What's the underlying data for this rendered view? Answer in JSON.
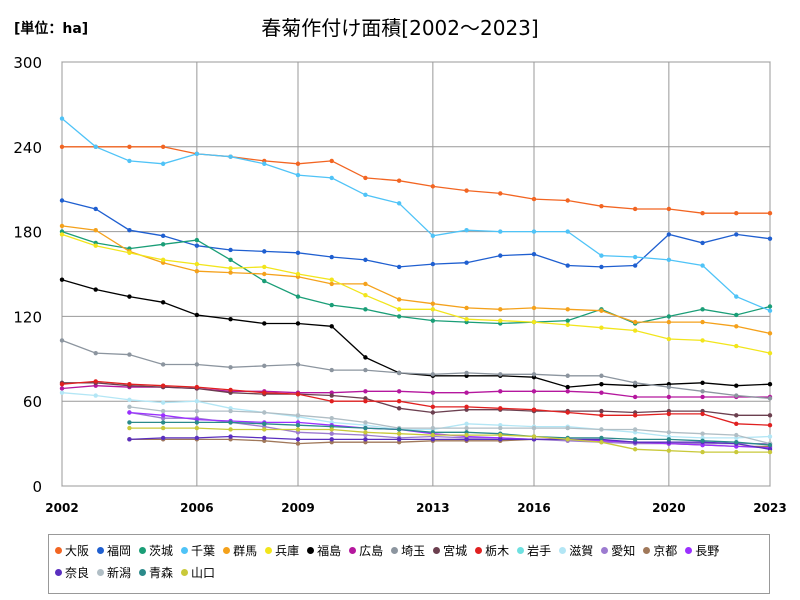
{
  "header": {
    "unit": "[単位：ha]",
    "title": "春菊作付け面積[2002～2023]"
  },
  "chart_data": {
    "type": "line",
    "title": "春菊作付け面積[2002～2023]",
    "ylabel": "[単位：ha]",
    "ylim": [
      0,
      300
    ],
    "xlim": [
      2002,
      2023
    ],
    "y_ticks": [
      0,
      60,
      120,
      180,
      240,
      300
    ],
    "x_ticks": [
      "2002",
      "2006",
      "2009",
      "2013",
      "2016",
      "2020",
      "2023"
    ],
    "grid": true,
    "legend_position": "bottom",
    "x": [
      2002,
      2003,
      2004,
      2005,
      2006,
      2007,
      2008,
      2009,
      2010,
      2011,
      2012,
      2013,
      2014,
      2015,
      2016,
      2017,
      2018,
      2019,
      2020,
      2021,
      2022,
      2023
    ],
    "series": [
      {
        "name": "大阪",
        "color": "#f26522",
        "values": [
          240,
          240,
          240,
          240,
          235,
          233,
          230,
          228,
          230,
          218,
          216,
          212,
          209,
          207,
          203,
          202,
          198,
          196,
          196,
          193,
          193,
          193
        ]
      },
      {
        "name": "福岡",
        "color": "#1f5fd0",
        "values": [
          202,
          196,
          181,
          177,
          170,
          167,
          166,
          165,
          162,
          160,
          155,
          157,
          158,
          163,
          164,
          156,
          155,
          156,
          178,
          172,
          178,
          175
        ]
      },
      {
        "name": "茨城",
        "color": "#1a9e77",
        "values": [
          180,
          172,
          168,
          171,
          174,
          160,
          145,
          134,
          128,
          125,
          120,
          117,
          116,
          115,
          116,
          117,
          125,
          115,
          120,
          125,
          121,
          127
        ]
      },
      {
        "name": "千葉",
        "color": "#4fc3f7",
        "values": [
          260,
          240,
          230,
          228,
          235,
          233,
          228,
          220,
          218,
          206,
          200,
          177,
          181,
          180,
          180,
          180,
          163,
          162,
          160,
          156,
          134,
          124
        ]
      },
      {
        "name": "群馬",
        "color": "#f4a11b",
        "values": [
          184,
          181,
          166,
          158,
          152,
          151,
          150,
          148,
          143,
          143,
          132,
          129,
          126,
          125,
          126,
          125,
          124,
          116,
          116,
          116,
          113,
          108
        ]
      },
      {
        "name": "兵庫",
        "color": "#f2e51b",
        "values": [
          178,
          170,
          165,
          160,
          157,
          154,
          155,
          150,
          146,
          135,
          125,
          125,
          118,
          117,
          116,
          114,
          112,
          110,
          104,
          103,
          99,
          94
        ]
      },
      {
        "name": "福島",
        "color": "#000000",
        "values": [
          146,
          139,
          134,
          130,
          121,
          118,
          115,
          115,
          113,
          91,
          80,
          78,
          78,
          78,
          77,
          70,
          72,
          71,
          72,
          73,
          71,
          72
        ]
      },
      {
        "name": "広島",
        "color": "#b5179e",
        "values": [
          69,
          71,
          70,
          70,
          69,
          67,
          67,
          66,
          66,
          67,
          67,
          66,
          66,
          67,
          67,
          67,
          66,
          63,
          63,
          63,
          63,
          63
        ]
      },
      {
        "name": "埼玉",
        "color": "#8c959f",
        "values": [
          103,
          94,
          93,
          86,
          86,
          84,
          85,
          86,
          82,
          82,
          80,
          79,
          80,
          79,
          79,
          78,
          78,
          73,
          70,
          67,
          64,
          62
        ]
      },
      {
        "name": "宮城",
        "color": "#6b3f4f",
        "values": [
          73,
          73,
          71,
          70,
          69,
          66,
          65,
          65,
          64,
          62,
          55,
          52,
          54,
          54,
          53,
          53,
          53,
          52,
          53,
          53,
          50,
          50
        ]
      },
      {
        "name": "栃木",
        "color": "#e02020",
        "values": [
          72,
          74,
          72,
          71,
          70,
          68,
          66,
          65,
          60,
          60,
          60,
          56,
          56,
          55,
          54,
          52,
          50,
          50,
          51,
          51,
          44,
          43
        ]
      },
      {
        "name": "岩手",
        "color": "#6ee0e0",
        "values": [
          null,
          null,
          null,
          null,
          null,
          null,
          null,
          null,
          null,
          null,
          null,
          null,
          null,
          null,
          null,
          null,
          null,
          null,
          null,
          null,
          null,
          null
        ]
      },
      {
        "name": "滋賀",
        "color": "#b3e6f5",
        "values": [
          66,
          64,
          61,
          59,
          60,
          55,
          52,
          49,
          45,
          43,
          40,
          40,
          44,
          43,
          42,
          42,
          40,
          38,
          35,
          34,
          34,
          35
        ]
      },
      {
        "name": "愛知",
        "color": "#9c7bd0",
        "values": [
          null,
          null,
          52,
          48,
          48,
          45,
          42,
          38,
          37,
          36,
          34,
          35,
          34,
          34,
          33,
          32,
          31,
          30,
          30,
          30,
          30,
          30
        ]
      },
      {
        "name": "京都",
        "color": "#a0785a",
        "values": [
          null,
          null,
          33,
          33,
          33,
          33,
          32,
          30,
          31,
          31,
          31,
          32,
          32,
          32,
          33,
          33,
          32,
          31,
          30,
          29,
          28,
          28
        ]
      },
      {
        "name": "長野",
        "color": "#9b30ff",
        "values": [
          null,
          null,
          52,
          50,
          47,
          46,
          45,
          45,
          43,
          41,
          40,
          37,
          35,
          34,
          33,
          33,
          32,
          31,
          30,
          29,
          28,
          27
        ]
      },
      {
        "name": "奈良",
        "color": "#5a2fbf",
        "values": [
          null,
          null,
          33,
          34,
          34,
          35,
          34,
          33,
          33,
          33,
          33,
          33,
          33,
          33,
          33,
          33,
          33,
          31,
          31,
          31,
          30,
          26
        ]
      },
      {
        "name": "新潟",
        "color": "#b0bec5",
        "values": [
          null,
          null,
          56,
          53,
          53,
          53,
          52,
          50,
          48,
          45,
          41,
          41,
          41,
          41,
          41,
          41,
          40,
          40,
          38,
          37,
          36,
          30
        ]
      },
      {
        "name": "青森",
        "color": "#2b8a8a",
        "values": [
          null,
          null,
          45,
          45,
          45,
          45,
          44,
          43,
          42,
          41,
          40,
          38,
          38,
          37,
          35,
          34,
          34,
          33,
          33,
          32,
          31,
          29
        ]
      },
      {
        "name": "山口",
        "color": "#c9c93a",
        "values": [
          null,
          null,
          41,
          41,
          41,
          40,
          40,
          40,
          40,
          38,
          37,
          36,
          36,
          36,
          35,
          33,
          31,
          26,
          25,
          24,
          24,
          24
        ]
      }
    ]
  }
}
